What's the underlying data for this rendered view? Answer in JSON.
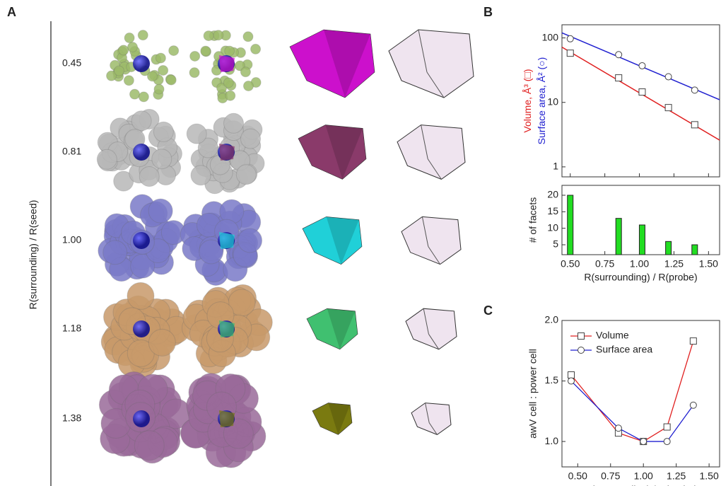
{
  "panel_a": {
    "label": "A",
    "y_label": "R(surrounding) / R(seed)",
    "rows": [
      "0.45",
      "0.81",
      "1.00",
      "1.18",
      "1.38"
    ]
  },
  "chart_data": [
    {
      "type": "line",
      "panel_label": "B",
      "log_y": true,
      "y_labels": [
        {
          "text": "Volume, Å³ (□)",
          "color": "#e02020"
        },
        {
          "text": "Surface area, Å² (○)",
          "color": "#2020d0"
        }
      ],
      "xlim": [
        0.44,
        1.58
      ],
      "xticks": [
        0.5,
        0.75,
        1,
        1.25,
        1.5
      ],
      "ylim": [
        0.7,
        160
      ],
      "yticks": [
        1,
        10,
        100
      ],
      "series": [
        {
          "color": "#e02020",
          "marker": "square",
          "x": [
            0.5,
            0.85,
            1.02,
            1.21,
            1.4
          ],
          "values": [
            58,
            24,
            14.5,
            8.3,
            4.5
          ],
          "fit": {
            "x": [
              0.44,
              1.58
            ],
            "values": [
              72,
              2.6
            ]
          }
        },
        {
          "color": "#2020d0",
          "marker": "circle",
          "x": [
            0.5,
            0.85,
            1.02,
            1.21,
            1.4
          ],
          "values": [
            97,
            55,
            37,
            25,
            15.5
          ],
          "fit": {
            "x": [
              0.44,
              1.58
            ],
            "values": [
              120,
              11
            ]
          }
        }
      ]
    },
    {
      "type": "bar",
      "y_label": "# of facets",
      "x_label": "R(surrounding) / R(probe)",
      "xlim": [
        0.44,
        1.58
      ],
      "xticks": [
        {
          "value": 0.5,
          "label": "0.50"
        },
        {
          "value": 0.75,
          "label": "0.75"
        },
        {
          "value": 1,
          "label": "1.00"
        },
        {
          "value": 1.25,
          "label": "1.25"
        },
        {
          "value": 1.5,
          "label": "1.50"
        }
      ],
      "ylim": [
        2,
        23
      ],
      "yticks": [
        5,
        10,
        15,
        20
      ],
      "color": "#22dd22",
      "x": [
        0.5,
        0.85,
        1.02,
        1.21,
        1.4
      ],
      "values": [
        20,
        13,
        11,
        6,
        5
      ]
    },
    {
      "type": "line",
      "panel_label": "C",
      "y_label": "awV cell : power cell",
      "x_label": "R(surrounding) / R(probe)",
      "xlim": [
        0.38,
        1.58
      ],
      "xticks": [
        {
          "value": 0.5,
          "label": "0.50"
        },
        {
          "value": 0.75,
          "label": "0.75"
        },
        {
          "value": 1,
          "label": "1.00"
        },
        {
          "value": 1.25,
          "label": "1.25"
        },
        {
          "value": 1.5,
          "label": "1.50"
        }
      ],
      "ylim": [
        0.79,
        2.0
      ],
      "yticks": [
        {
          "value": 1,
          "label": "1.0"
        },
        {
          "value": 1.5,
          "label": "1.5"
        },
        {
          "value": 2,
          "label": "2.0"
        }
      ],
      "legend": "top-left",
      "series": [
        {
          "name": "Volume",
          "color": "#e02020",
          "marker": "square",
          "x": [
            0.45,
            0.81,
            1.0,
            1.18,
            1.38
          ],
          "values": [
            1.55,
            1.07,
            1.0,
            1.12,
            1.83
          ]
        },
        {
          "name": "Surface area",
          "color": "#2020d0",
          "marker": "circle",
          "x": [
            0.45,
            0.81,
            1.0,
            1.18,
            1.38
          ],
          "values": [
            1.5,
            1.11,
            1.0,
            1.0,
            1.3
          ]
        }
      ]
    }
  ]
}
